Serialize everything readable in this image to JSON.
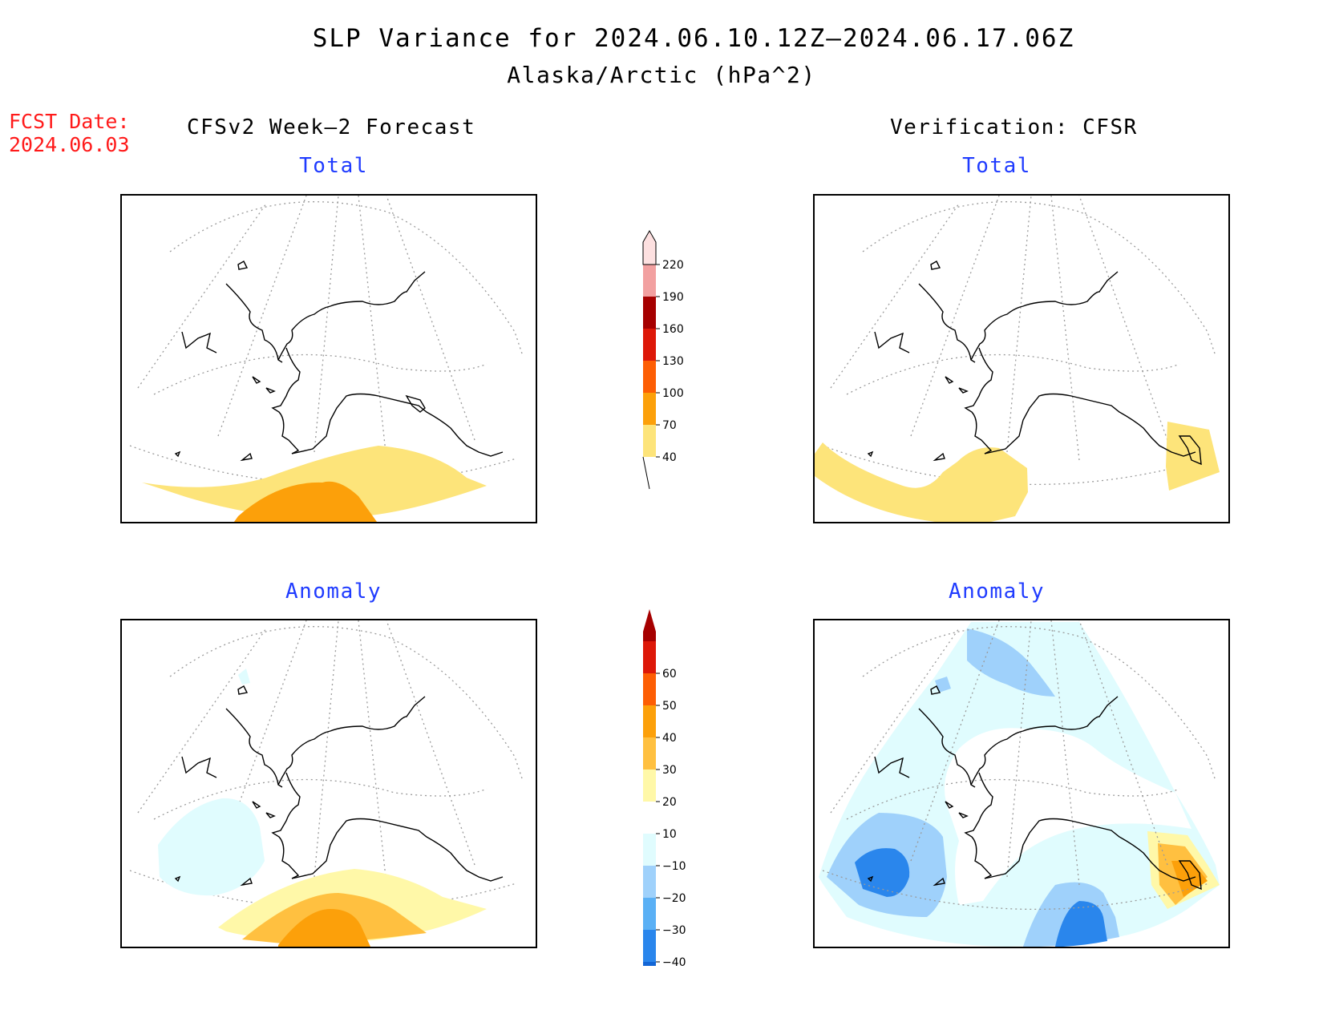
{
  "header": {
    "title": "SLP Variance for 2024.06.10.12Z–2024.06.17.06Z",
    "subtitle": "Alaska/Arctic (hPa^2)"
  },
  "forecast_date": {
    "label": "FCST Date:",
    "value": "2024.06.03"
  },
  "columns": {
    "left": "CFSv2 Week–2 Forecast",
    "right": "Verification: CFSR"
  },
  "panels": {
    "top_left_label": "Total",
    "top_right_label": "Total",
    "bottom_left_label": "Anomaly",
    "bottom_right_label": "Anomaly"
  },
  "colorbar_total": {
    "ticks": [
      "40",
      "70",
      "100",
      "130",
      "160",
      "190",
      "220"
    ],
    "colors": [
      "#fde47a",
      "#fca00a",
      "#fd5e04",
      "#dd1808",
      "#a60000",
      "#f2a0a0",
      "#fde0e0"
    ]
  },
  "colorbar_anomaly": {
    "ticks": [
      "−40",
      "−30",
      "−20",
      "−10",
      "10",
      "20",
      "30",
      "40",
      "50",
      "60"
    ],
    "colors": [
      "#1366d6",
      "#2a86ec",
      "#5ab0f5",
      "#9fd1fb",
      "#e0fcfe",
      "#ffffff",
      "#fff8a8",
      "#ffc040",
      "#fca00a",
      "#fd5e04",
      "#dd1808",
      "#a60000"
    ]
  },
  "colors": {
    "title_red": "#ff1a1a",
    "label_blue": "#1f3bff"
  }
}
